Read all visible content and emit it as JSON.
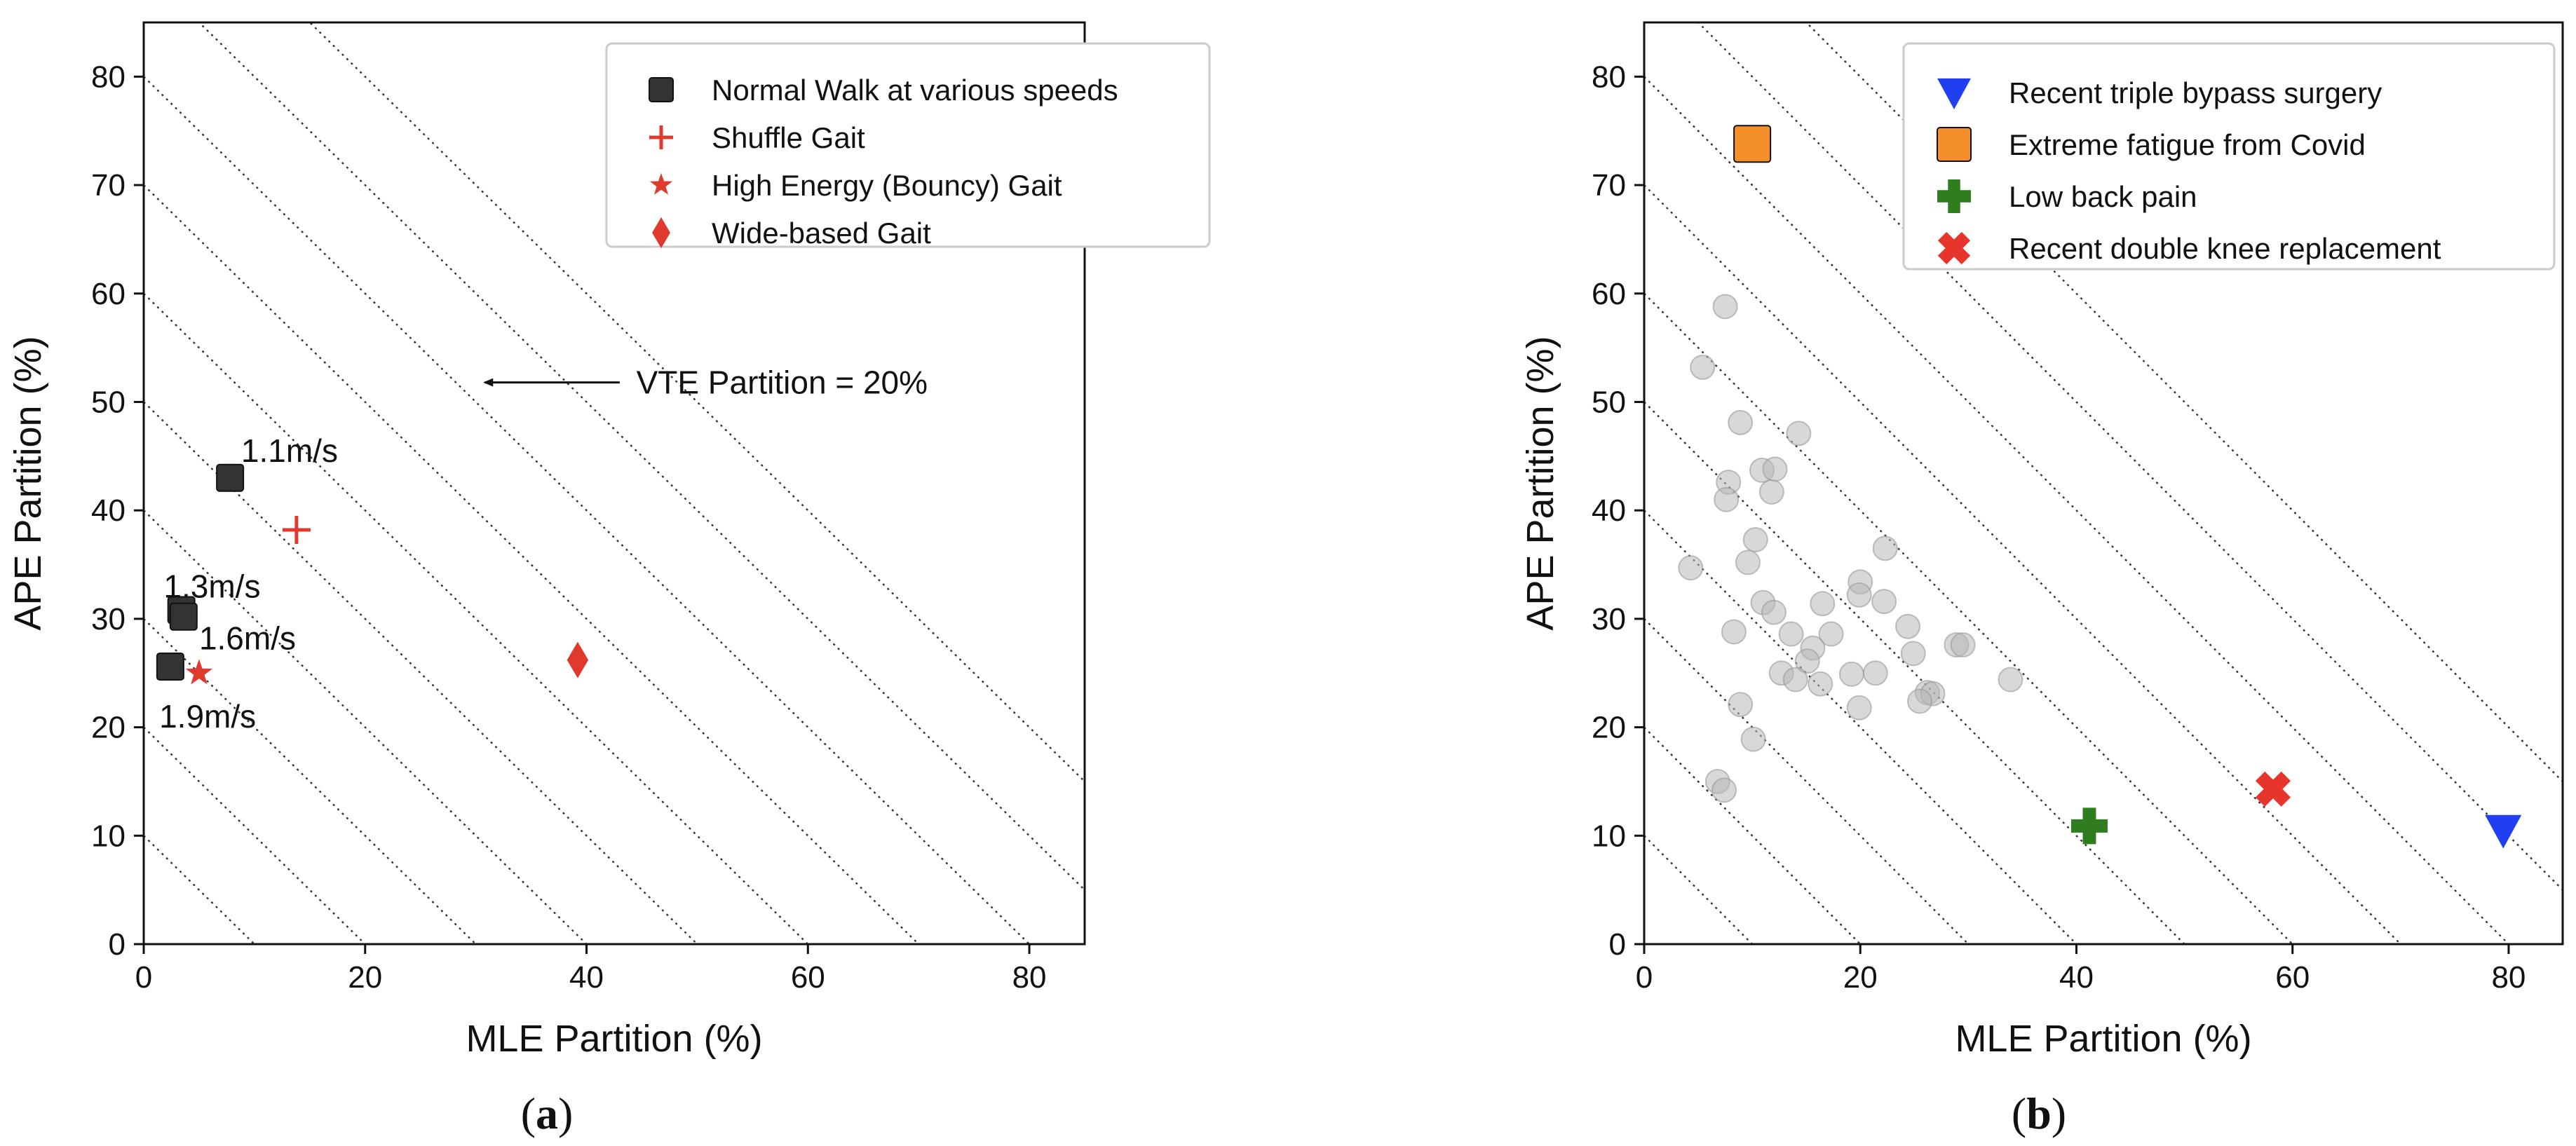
{
  "chart_data": [
    {
      "type": "scatter",
      "panel_label_prefix": "(",
      "panel_letter": "a",
      "panel_label_suffix": ")",
      "xlabel": "MLE Partition (%)",
      "ylabel": "APE Partition (%)",
      "xlim": [
        0,
        85
      ],
      "ylim": [
        0,
        85
      ],
      "xticks": [
        0,
        20,
        40,
        60,
        80
      ],
      "yticks": [
        0,
        10,
        20,
        30,
        40,
        50,
        60,
        70,
        80
      ],
      "iso_lines": [
        10,
        20,
        30,
        40,
        50,
        60,
        70,
        80,
        90,
        100
      ],
      "grid": false,
      "legend_position": "top-right",
      "series": [
        {
          "name": "Normal Walk at various speeds",
          "marker": "square",
          "color": "#333333",
          "points": [
            [
              7.8,
              43
            ],
            [
              3.4,
              30.8
            ],
            [
              3.6,
              30.2
            ],
            [
              2.4,
              25.6
            ]
          ]
        },
        {
          "name": "Shuffle Gait",
          "marker": "plus",
          "color": "#e03a2f",
          "points": [
            [
              13.8,
              38.2
            ]
          ]
        },
        {
          "name": "High Energy (Bouncy) Gait",
          "marker": "star",
          "color": "#e03a2f",
          "points": [
            [
              5.0,
              25.0
            ]
          ]
        },
        {
          "name": "Wide-based Gait",
          "marker": "diamond",
          "color": "#e03a2f",
          "points": [
            [
              39.2,
              26.2
            ]
          ]
        }
      ],
      "point_labels": [
        {
          "text": "1.1m/s",
          "x": 8.8,
          "y": 45.5
        },
        {
          "text": "1.3m/s",
          "x": 1.8,
          "y": 33.0
        },
        {
          "text": "1.6m/s",
          "x": 5.0,
          "y": 28.2
        },
        {
          "text": "1.9m/s",
          "x": 1.4,
          "y": 21.0
        }
      ],
      "annotation": {
        "text": "VTE Partition = 20%",
        "arrow_from": [
          43.0,
          51.8
        ],
        "arrow_to": [
          30.8,
          51.8
        ],
        "text_x": 44.5,
        "text_y": 51.8
      }
    },
    {
      "type": "scatter",
      "panel_label_prefix": "(",
      "panel_letter": "b",
      "panel_label_suffix": ")",
      "xlabel": "MLE Partition (%)",
      "ylabel": "APE Partition (%)",
      "xlim": [
        0,
        85
      ],
      "ylim": [
        0,
        85
      ],
      "xticks": [
        0,
        20,
        40,
        60,
        80
      ],
      "yticks": [
        0,
        10,
        20,
        30,
        40,
        50,
        60,
        70,
        80
      ],
      "iso_lines": [
        10,
        20,
        30,
        40,
        50,
        60,
        70,
        80,
        90,
        100
      ],
      "grid": false,
      "legend_position": "top-right",
      "background_points": {
        "color": "#b8b8b8",
        "points": [
          [
            7.5,
            58.8
          ],
          [
            5.4,
            53.2
          ],
          [
            8.9,
            48.1
          ],
          [
            14.3,
            47.1
          ],
          [
            7.8,
            42.6
          ],
          [
            7.6,
            41.0
          ],
          [
            10.9,
            43.7
          ],
          [
            12.1,
            43.8
          ],
          [
            11.8,
            41.7
          ],
          [
            10.3,
            37.3
          ],
          [
            22.3,
            36.5
          ],
          [
            9.6,
            35.2
          ],
          [
            4.3,
            34.7
          ],
          [
            20.0,
            33.4
          ],
          [
            19.9,
            32.2
          ],
          [
            11.0,
            31.5
          ],
          [
            16.5,
            31.4
          ],
          [
            22.2,
            31.6
          ],
          [
            12.0,
            30.6
          ],
          [
            8.3,
            28.8
          ],
          [
            13.6,
            28.6
          ],
          [
            17.3,
            28.6
          ],
          [
            24.4,
            29.3
          ],
          [
            15.6,
            27.3
          ],
          [
            24.9,
            26.8
          ],
          [
            15.1,
            26.1
          ],
          [
            28.9,
            27.6
          ],
          [
            29.5,
            27.6
          ],
          [
            12.7,
            25.0
          ],
          [
            19.2,
            24.9
          ],
          [
            21.4,
            25.0
          ],
          [
            33.9,
            24.4
          ],
          [
            14.0,
            24.4
          ],
          [
            16.3,
            24.0
          ],
          [
            26.2,
            23.2
          ],
          [
            26.7,
            23.1
          ],
          [
            25.5,
            22.4
          ],
          [
            8.9,
            22.1
          ],
          [
            19.9,
            21.8
          ],
          [
            10.1,
            18.9
          ],
          [
            6.8,
            15.0
          ],
          [
            7.4,
            14.2
          ]
        ]
      },
      "series": [
        {
          "name": "Recent triple bypass surgery",
          "marker": "triangle-down",
          "color": "#1f3ff0",
          "points": [
            [
              79.5,
              10.5
            ]
          ]
        },
        {
          "name": "Extreme fatigue from Covid",
          "marker": "square",
          "color": "#f4902b",
          "points": [
            [
              10.0,
              73.8
            ]
          ]
        },
        {
          "name": "Low back pain",
          "marker": "plus-filled",
          "color": "#2f7d1e",
          "points": [
            [
              41.2,
              10.9
            ]
          ]
        },
        {
          "name": "Recent double knee replacement",
          "marker": "x-filled",
          "color": "#e8352b",
          "points": [
            [
              58.2,
              14.3
            ]
          ]
        }
      ]
    }
  ]
}
